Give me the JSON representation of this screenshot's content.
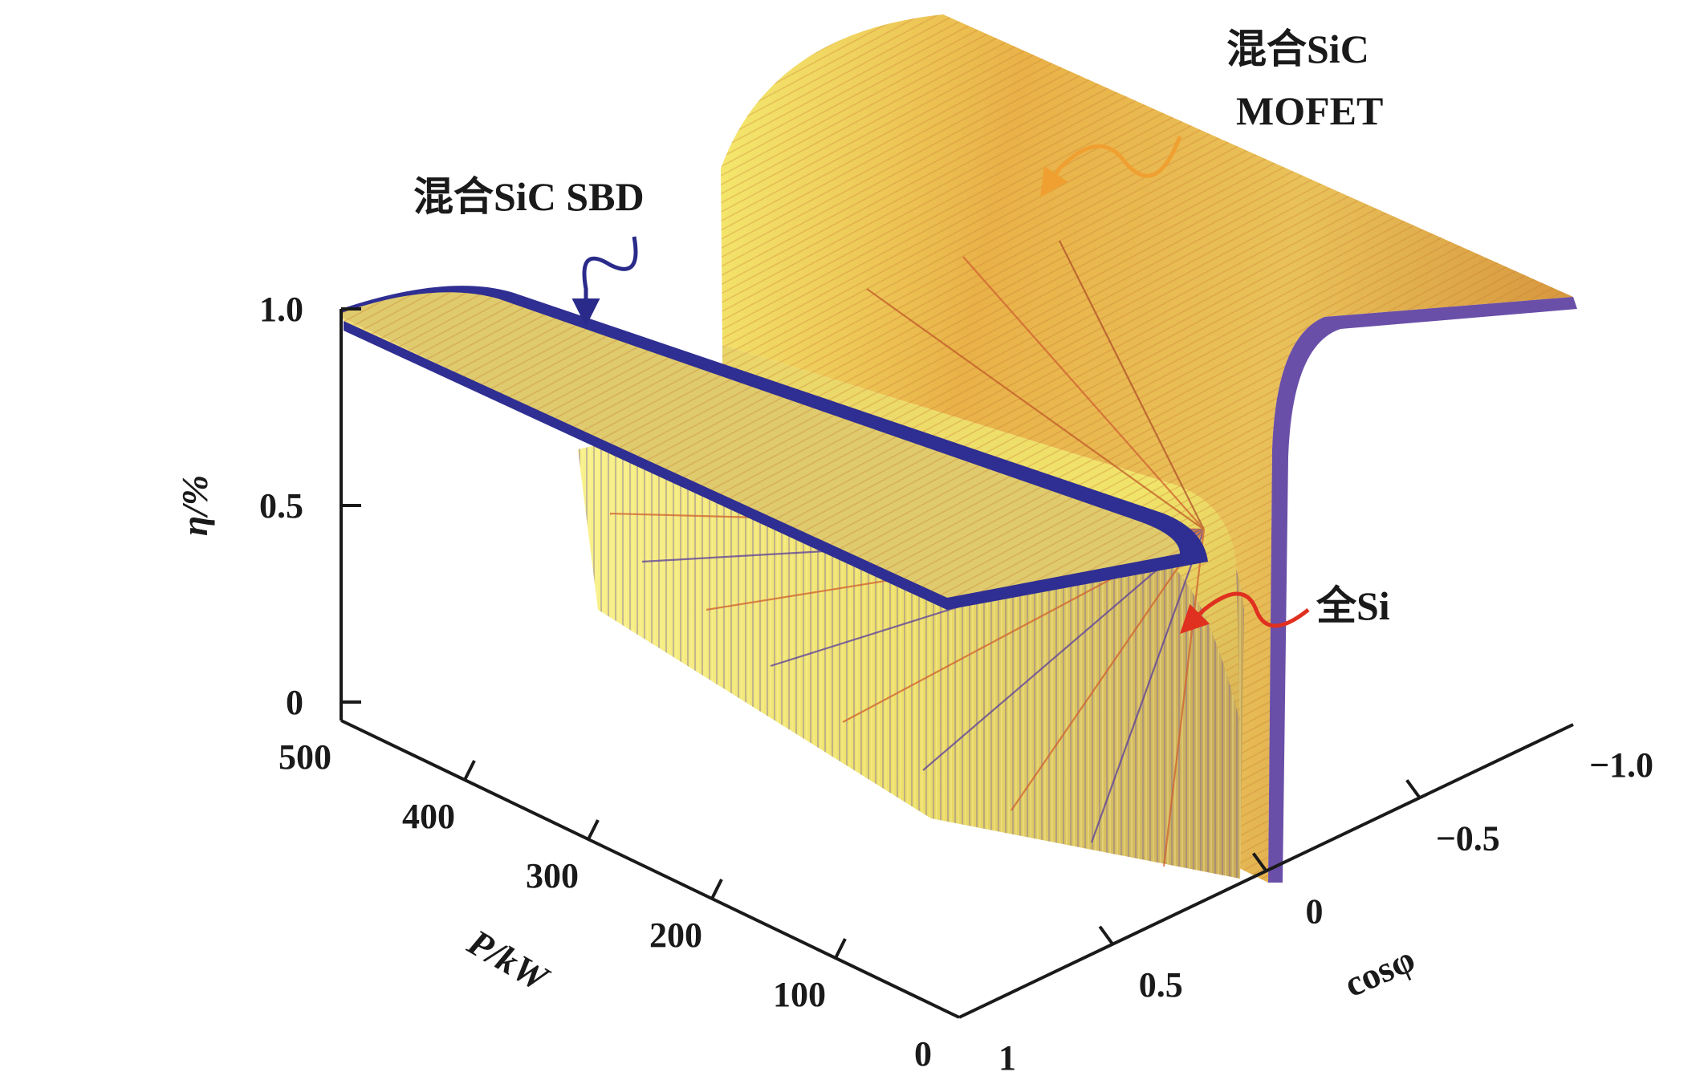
{
  "chart_data": {
    "type": "surface3d",
    "zlabel": "η/%",
    "ylabel": "P/kW",
    "xlabel": "cosφ",
    "z_ticks": [
      "0",
      "0.5",
      "1.0"
    ],
    "p_ticks": [
      "500",
      "400",
      "300",
      "200",
      "100",
      "0"
    ],
    "cos_ticks": [
      "1",
      "0.5",
      "0",
      "−0.5",
      "−1.0"
    ],
    "zlim": [
      0,
      1.0
    ],
    "plim": [
      0,
      500
    ],
    "coslim": [
      -1.0,
      1
    ],
    "series": [
      {
        "name": "混合SiC MOFET",
        "color": "#f0a030"
      },
      {
        "name": "混合SiC SBD",
        "color": "#2a2a8a"
      },
      {
        "name": "全Si",
        "color": "#e03020"
      }
    ],
    "annotations": [
      {
        "lines": [
          "混合SiC",
          "MOFET"
        ],
        "arrow_color": "#f0a030"
      },
      {
        "lines": [
          "混合SiC SBD"
        ],
        "arrow_color": "#2a2a8a"
      },
      {
        "lines": [
          "全Si"
        ],
        "arrow_color": "#e03020"
      }
    ]
  }
}
